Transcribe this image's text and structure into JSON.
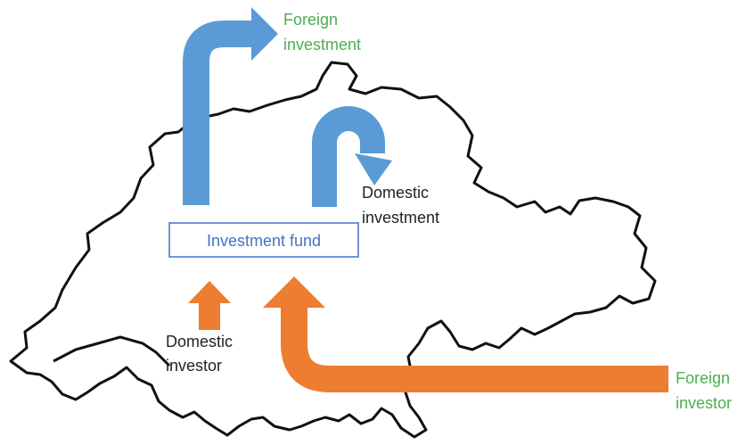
{
  "labels": {
    "foreign_investment": [
      "Foreign",
      "investment"
    ],
    "domestic_investment": [
      "Domestic",
      "investment"
    ],
    "investment_fund": "Investment fund",
    "domestic_investor": [
      "Domestic",
      "investor"
    ],
    "foreign_investor": [
      "Foreign",
      "investor"
    ]
  }
}
